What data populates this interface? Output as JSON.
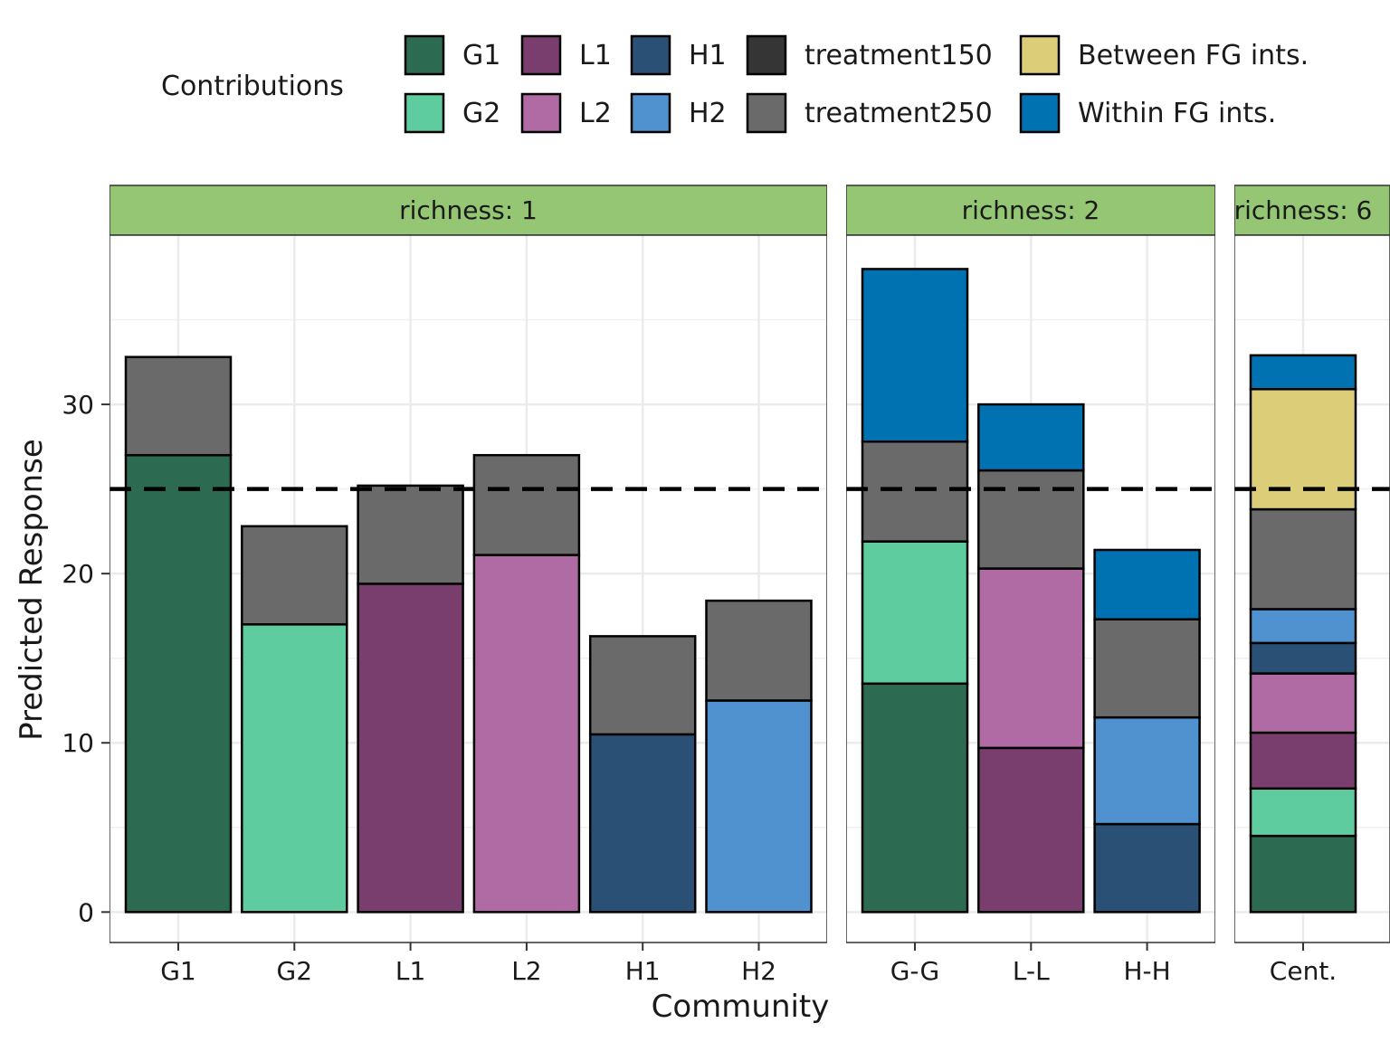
{
  "chart_data": {
    "type": "stacked-bar",
    "xlabel": "Community",
    "ylabel": "Predicted Response",
    "ylim": [
      -1.8,
      40
    ],
    "yticks": [
      0,
      10,
      20,
      30
    ],
    "reference_line": 25,
    "legend": {
      "title": "Contributions",
      "position": "top",
      "entries": [
        {
          "key": "G1",
          "label": "G1",
          "color": "#2d6a52"
        },
        {
          "key": "G2",
          "label": "G2",
          "color": "#5ecc9f"
        },
        {
          "key": "L1",
          "label": "L1",
          "color": "#7a3e6e"
        },
        {
          "key": "L2",
          "label": "L2",
          "color": "#b06ba4"
        },
        {
          "key": "H1",
          "label": "H1",
          "color": "#2a5075"
        },
        {
          "key": "H2",
          "label": "H2",
          "color": "#5092d0"
        },
        {
          "key": "treatment150",
          "label": "treatment150",
          "color": "#353535"
        },
        {
          "key": "treatment250",
          "label": "treatment250",
          "color": "#6a6a6a"
        },
        {
          "key": "between",
          "label": "Between FG ints.",
          "color": "#dccd78"
        },
        {
          "key": "within",
          "label": "Within FG ints.",
          "color": "#0072b2"
        }
      ]
    },
    "panels": [
      {
        "strip": "richness: 1",
        "bars": [
          {
            "category": "G1",
            "segments": [
              {
                "key": "G1",
                "value": 27.0
              },
              {
                "key": "treatment250",
                "value": 5.8
              }
            ]
          },
          {
            "category": "G2",
            "segments": [
              {
                "key": "G2",
                "value": 17.0
              },
              {
                "key": "treatment250",
                "value": 5.8
              }
            ]
          },
          {
            "category": "L1",
            "segments": [
              {
                "key": "L1",
                "value": 19.4
              },
              {
                "key": "treatment250",
                "value": 5.8
              }
            ]
          },
          {
            "category": "L2",
            "segments": [
              {
                "key": "L2",
                "value": 21.1
              },
              {
                "key": "treatment250",
                "value": 5.9
              }
            ]
          },
          {
            "category": "H1",
            "segments": [
              {
                "key": "H1",
                "value": 10.5
              },
              {
                "key": "treatment250",
                "value": 5.8
              }
            ]
          },
          {
            "category": "H2",
            "segments": [
              {
                "key": "H2",
                "value": 12.5
              },
              {
                "key": "treatment250",
                "value": 5.9
              }
            ]
          }
        ]
      },
      {
        "strip": "richness: 2",
        "bars": [
          {
            "category": "G-G",
            "segments": [
              {
                "key": "G1",
                "value": 13.5
              },
              {
                "key": "G2",
                "value": 8.4
              },
              {
                "key": "treatment250",
                "value": 5.9
              },
              {
                "key": "within",
                "value": 10.2
              }
            ]
          },
          {
            "category": "L-L",
            "segments": [
              {
                "key": "L1",
                "value": 9.7
              },
              {
                "key": "L2",
                "value": 10.6
              },
              {
                "key": "treatment250",
                "value": 5.8
              },
              {
                "key": "within",
                "value": 3.9
              }
            ]
          },
          {
            "category": "H-H",
            "segments": [
              {
                "key": "H1",
                "value": 5.2
              },
              {
                "key": "H2",
                "value": 6.3
              },
              {
                "key": "treatment250",
                "value": 5.8
              },
              {
                "key": "within",
                "value": 4.1
              }
            ]
          }
        ]
      },
      {
        "strip": "richness: 6",
        "bars": [
          {
            "category": "Cent.",
            "segments": [
              {
                "key": "G1",
                "value": 4.5
              },
              {
                "key": "G2",
                "value": 2.8
              },
              {
                "key": "L1",
                "value": 3.3
              },
              {
                "key": "L2",
                "value": 3.5
              },
              {
                "key": "H1",
                "value": 1.8
              },
              {
                "key": "H2",
                "value": 2.0
              },
              {
                "key": "treatment250",
                "value": 5.9
              },
              {
                "key": "between",
                "value": 7.1
              },
              {
                "key": "within",
                "value": 2.0
              }
            ]
          }
        ]
      }
    ]
  }
}
